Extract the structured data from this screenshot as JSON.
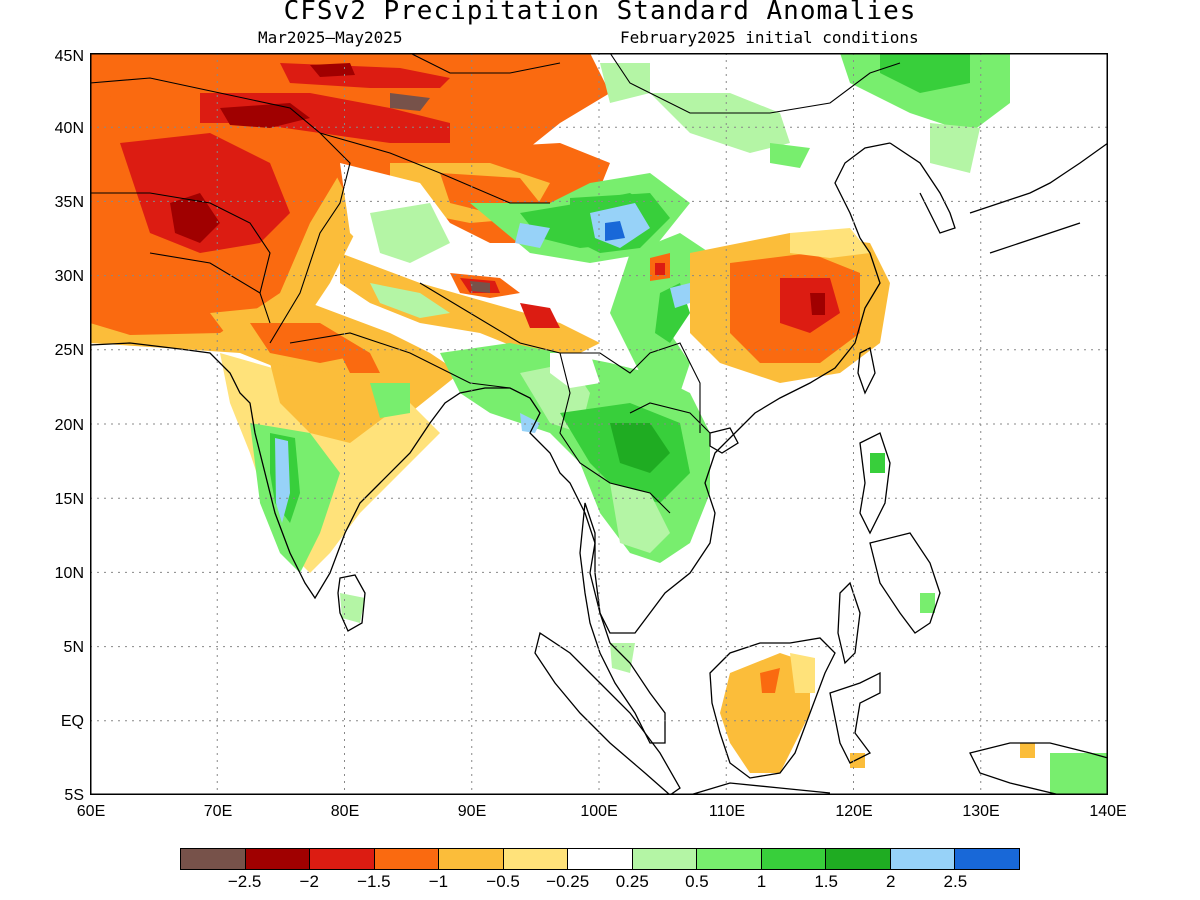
{
  "title": "CFSv2 Precipitation Standard Anomalies",
  "subtitle_left": "Mar2025–May2025",
  "subtitle_right": "February2025 initial conditions",
  "lat_labels": [
    "45N",
    "40N",
    "35N",
    "30N",
    "25N",
    "20N",
    "15N",
    "10N",
    "5N",
    "EQ",
    "5S"
  ],
  "lon_labels": [
    "60E",
    "70E",
    "80E",
    "90E",
    "100E",
    "110E",
    "120E",
    "130E",
    "140E"
  ],
  "legend": {
    "colors": [
      "#77524a",
      "#a00000",
      "#dc1c12",
      "#fa6a10",
      "#fbbd3a",
      "#ffe27a",
      "#ffffff",
      "#b4f5a5",
      "#78ee6e",
      "#38cf3b",
      "#1fac22",
      "#97d2f8",
      "#1868d8"
    ],
    "ticks": [
      "−2.5",
      "−2",
      "−1.5",
      "−1",
      "−0.5",
      "−0.25",
      "0.25",
      "0.5",
      "1",
      "1.5",
      "2",
      "2.5"
    ]
  },
  "regions": [
    {
      "name": "Afghanistan–Iran dry anomaly",
      "category": "-1"
    },
    {
      "name": "Tarim Basin dry anomaly",
      "category": "-1"
    },
    {
      "name": "Southeast China dry anomaly",
      "category": "-1.5"
    },
    {
      "name": "Tibetan Plateau wet anomaly",
      "category": "1.5"
    },
    {
      "name": "Indochina wet anomaly",
      "category": "1"
    },
    {
      "name": "Western Ghats wet anomaly",
      "category": "2"
    },
    {
      "name": "Borneo dry anomaly",
      "category": "-0.5"
    }
  ]
}
